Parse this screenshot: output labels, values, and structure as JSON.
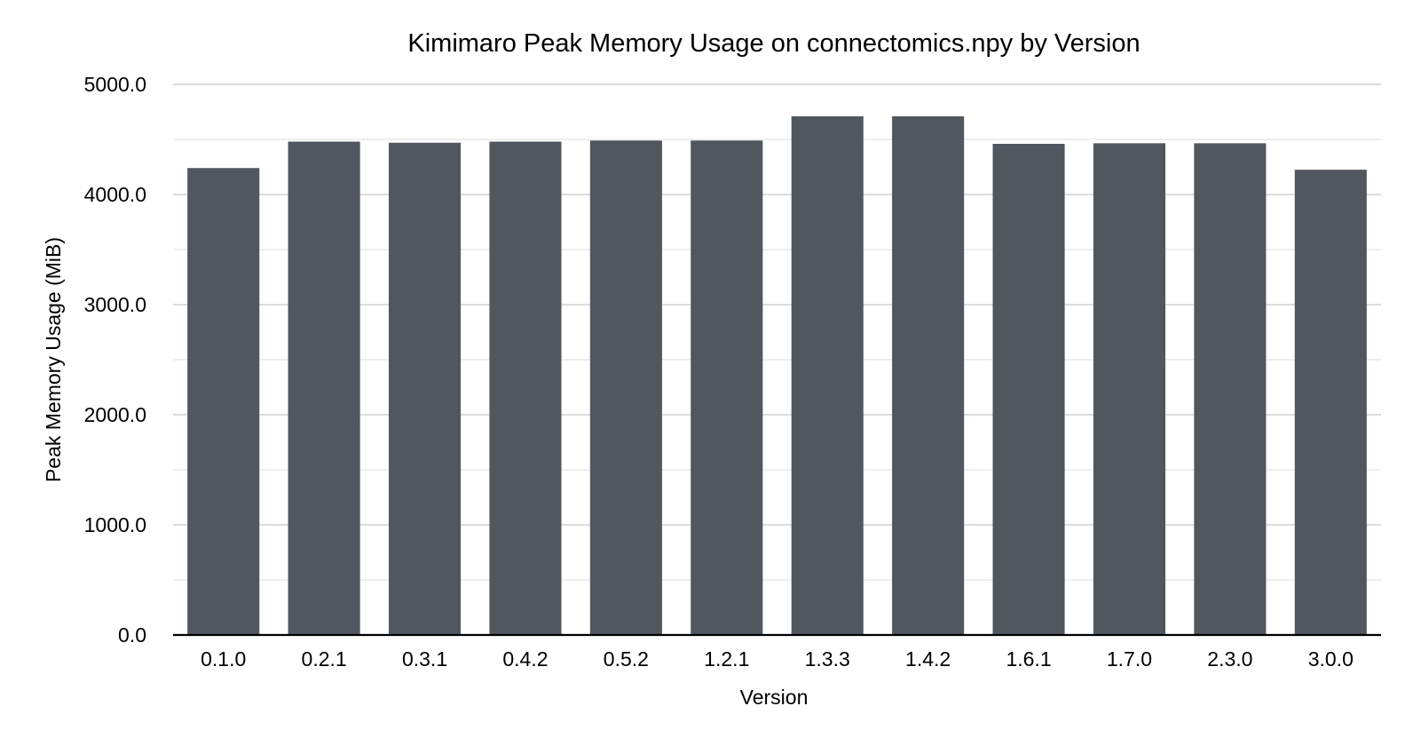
{
  "chart_data": {
    "type": "bar",
    "title": "Kimimaro Peak Memory Usage on connectomics.npy by Version",
    "xlabel": "Version",
    "ylabel": "Peak Memory Usage (MiB)",
    "categories": [
      "0.1.0",
      "0.2.1",
      "0.3.1",
      "0.4.2",
      "0.5.2",
      "1.2.1",
      "1.3.3",
      "1.4.2",
      "1.6.1",
      "1.7.0",
      "2.3.0",
      "3.0.0"
    ],
    "values": [
      4240,
      4480,
      4470,
      4480,
      4490,
      4490,
      4710,
      4710,
      4460,
      4465,
      4465,
      4225
    ],
    "ylim": [
      0,
      5000
    ],
    "yticks": [
      "0.0",
      "1000.0",
      "2000.0",
      "3000.0",
      "4000.0",
      "5000.0"
    ],
    "ytick_values": [
      0,
      1000,
      2000,
      3000,
      4000,
      5000
    ],
    "minor_grid_values": [
      500,
      1500,
      2500,
      3500,
      4500
    ],
    "grid": true,
    "legend": "none",
    "bar_color": "#51575f"
  }
}
